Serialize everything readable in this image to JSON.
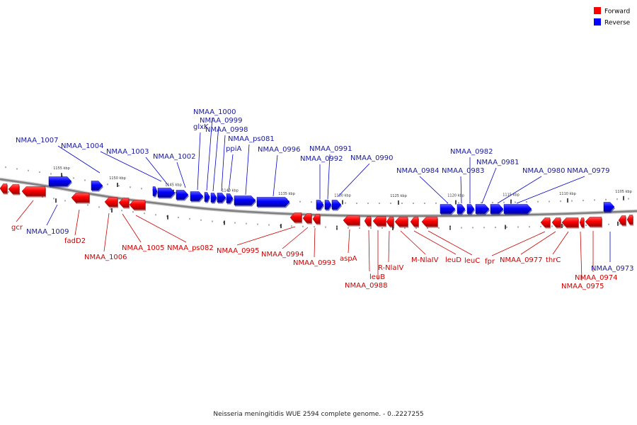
{
  "caption": "Neisseria meningitidis WUE 2594 complete genome. - 0..2227255",
  "legend": [
    {
      "label": "Forward",
      "color": "#ff0000"
    },
    {
      "label": "Reverse",
      "color": "#0000ff"
    }
  ],
  "colors": {
    "forward": "#ff0000",
    "forward_line": "#cc0000",
    "reverse": "#0000ff",
    "reverse_line": "#0000cc",
    "backbone": "#808080"
  },
  "tick_labels": [
    "1155 kbp",
    "1150 kbp",
    "1145 kbp",
    "1140 kbp",
    "1135 kbp",
    "1130 kbp",
    "1125 kbp",
    "1120 kbp",
    "1115 kbp",
    "1110 kbp",
    "1105 kbp"
  ],
  "forward_genes": [
    "gcr",
    "fadD2",
    "NMAA_1006",
    "NMAA_1005",
    "NMAA_ps082",
    "NMAA_0995",
    "NMAA_0994",
    "NMAA_0993",
    "aspA",
    "leuB",
    "NMAA_0988",
    "R-NlaIV",
    "M-NlaIV",
    "leuD",
    "leuC",
    "fpr",
    "NMAA_0977",
    "thrC",
    "NMAA_0974",
    "NMAA_0975"
  ],
  "reverse_genes": [
    "NMAA_1007",
    "NMAA_1004",
    "NMAA_1003",
    "NMAA_1002",
    "glxK",
    "NMAA_1000",
    "NMAA_0999",
    "NMAA_0998",
    "ppiA",
    "NMAA_ps081",
    "NMAA_0996",
    "NMAA_0991",
    "NMAA_0992",
    "NMAA_0990",
    "NMAA_0984",
    "NMAA_0983",
    "NMAA_0982",
    "NMAA_0981",
    "NMAA_0980",
    "NMAA_0979",
    "NMAA_1009",
    "NMAA_0973"
  ]
}
